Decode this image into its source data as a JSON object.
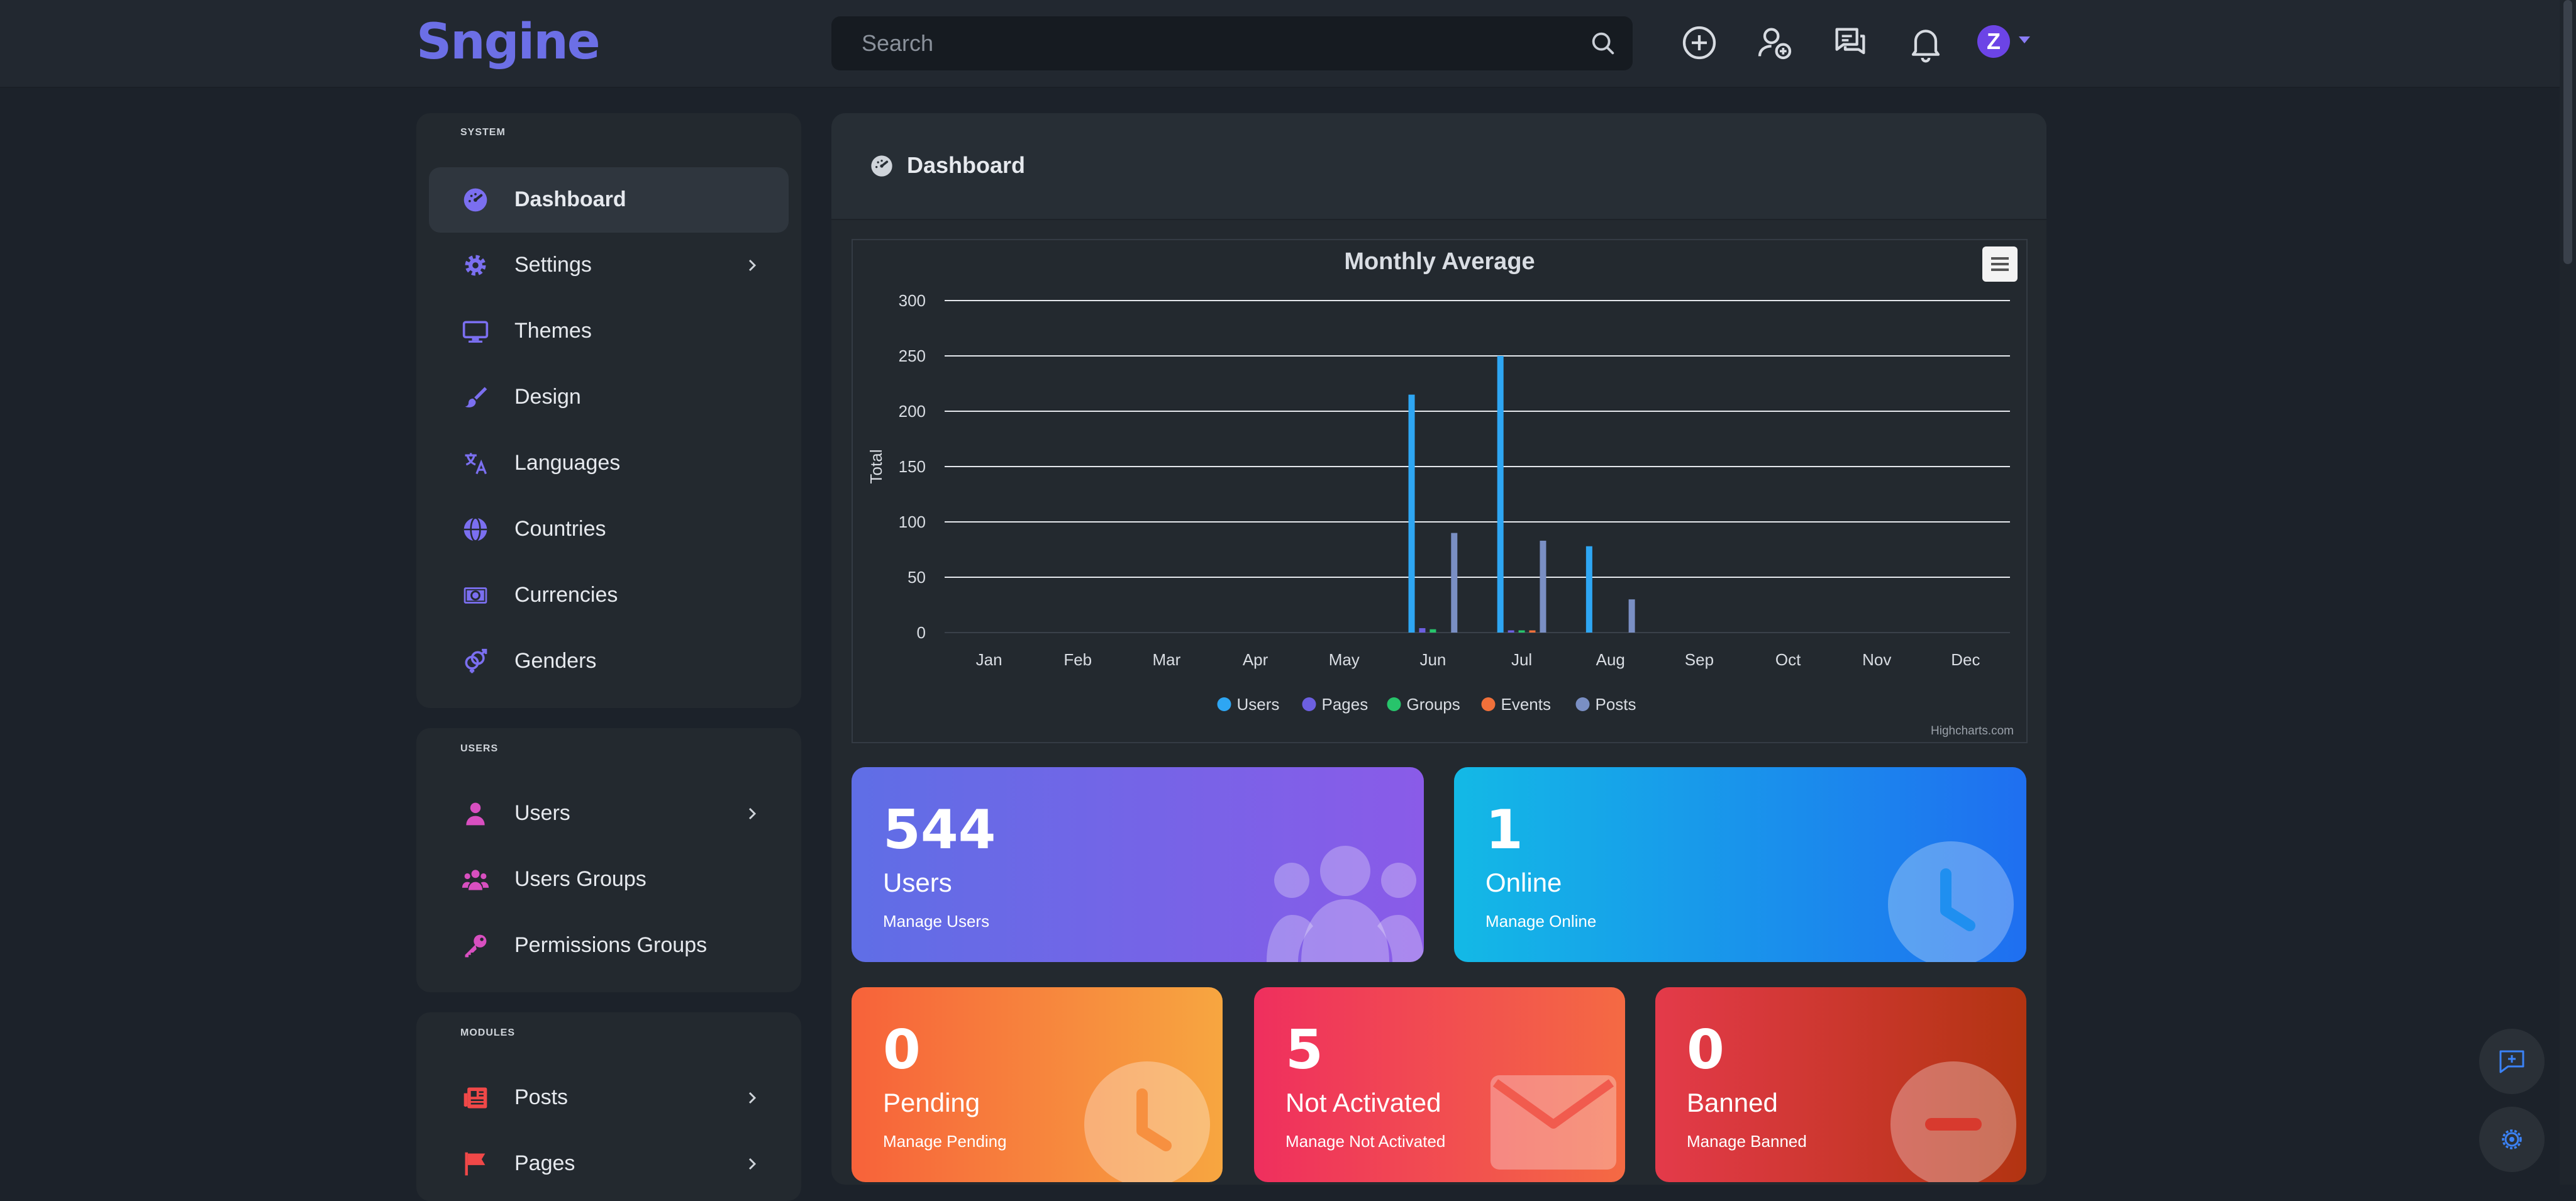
{
  "app": {
    "logo": "Sngine"
  },
  "search": {
    "placeholder": "Search"
  },
  "topbar": {
    "icons": [
      "plus-circle-icon",
      "user-add-icon",
      "messages-icon",
      "bell-icon"
    ],
    "avatar_letter": "Z"
  },
  "sidebar": {
    "sections": [
      {
        "header": "SYSTEM",
        "items": [
          {
            "label": "Dashboard",
            "icon": "dashboard-icon",
            "active": true
          },
          {
            "label": "Settings",
            "icon": "gear-icon",
            "chevron": true
          },
          {
            "label": "Themes",
            "icon": "monitor-icon"
          },
          {
            "label": "Design",
            "icon": "paint-brush-icon"
          },
          {
            "label": "Languages",
            "icon": "translate-icon"
          },
          {
            "label": "Countries",
            "icon": "globe-icon"
          },
          {
            "label": "Currencies",
            "icon": "money-icon"
          },
          {
            "label": "Genders",
            "icon": "gender-icon"
          }
        ]
      },
      {
        "header": "USERS",
        "items": [
          {
            "label": "Users",
            "icon": "user-icon",
            "chevron": true
          },
          {
            "label": "Users Groups",
            "icon": "users-group-icon"
          },
          {
            "label": "Permissions Groups",
            "icon": "key-icon"
          }
        ]
      },
      {
        "header": "MODULES",
        "items": [
          {
            "label": "Posts",
            "icon": "newspaper-icon",
            "chevron": true
          },
          {
            "label": "Pages",
            "icon": "flag-icon",
            "chevron": true
          }
        ]
      }
    ]
  },
  "main": {
    "title": "Dashboard"
  },
  "chart_data": {
    "type": "bar",
    "title": "Monthly Average",
    "xlabel": "",
    "ylabel": "Total",
    "ylim": [
      0,
      300
    ],
    "yticks": [
      0,
      50,
      100,
      150,
      200,
      250,
      300
    ],
    "categories": [
      "Jan",
      "Feb",
      "Mar",
      "Apr",
      "May",
      "Jun",
      "Jul",
      "Aug",
      "Sep",
      "Oct",
      "Nov",
      "Dec"
    ],
    "series": [
      {
        "name": "Users",
        "color": "#2ea6f3",
        "values": [
          0,
          0,
          0,
          0,
          0,
          215,
          250,
          78,
          0,
          0,
          0,
          0
        ]
      },
      {
        "name": "Pages",
        "color": "#6c5fe0",
        "values": [
          0,
          0,
          0,
          0,
          0,
          4,
          2,
          0,
          0,
          0,
          0,
          0
        ]
      },
      {
        "name": "Groups",
        "color": "#27c46b",
        "values": [
          0,
          0,
          0,
          0,
          0,
          3,
          2,
          0,
          0,
          0,
          0,
          0
        ]
      },
      {
        "name": "Events",
        "color": "#f0703a",
        "values": [
          0,
          0,
          0,
          0,
          0,
          0,
          2,
          0,
          0,
          0,
          0,
          0
        ]
      },
      {
        "name": "Posts",
        "color": "#7a8fc4",
        "values": [
          0,
          0,
          0,
          0,
          0,
          90,
          83,
          30,
          0,
          0,
          0,
          0
        ]
      }
    ],
    "legend_position": "bottom-center",
    "credits": "Highcharts.com",
    "grid": true
  },
  "stats": [
    {
      "number": "544",
      "label": "Users",
      "link": "Manage Users",
      "gradient": [
        "#5f6ee6",
        "#8a5be8"
      ],
      "icon": "users-icon"
    },
    {
      "number": "1",
      "label": "Online",
      "link": "Manage Online",
      "gradient": [
        "#13b9e6",
        "#1f6ff0"
      ],
      "icon": "clock-icon"
    },
    {
      "number": "0",
      "label": "Pending",
      "link": "Manage Pending",
      "gradient": [
        "#f7623a",
        "#f7a640"
      ],
      "icon": "clock-icon"
    },
    {
      "number": "5",
      "label": "Not Activated",
      "link": "Manage Not Activated",
      "gradient": [
        "#ef2f5e",
        "#f46a43"
      ],
      "icon": "envelope-icon"
    },
    {
      "number": "0",
      "label": "Banned",
      "link": "Manage Banned",
      "gradient": [
        "#e43a4a",
        "#b23411"
      ],
      "icon": "minus-circle-icon"
    }
  ],
  "floating": {
    "icons": [
      "chat-plus-icon",
      "settings-gear-icon"
    ]
  }
}
